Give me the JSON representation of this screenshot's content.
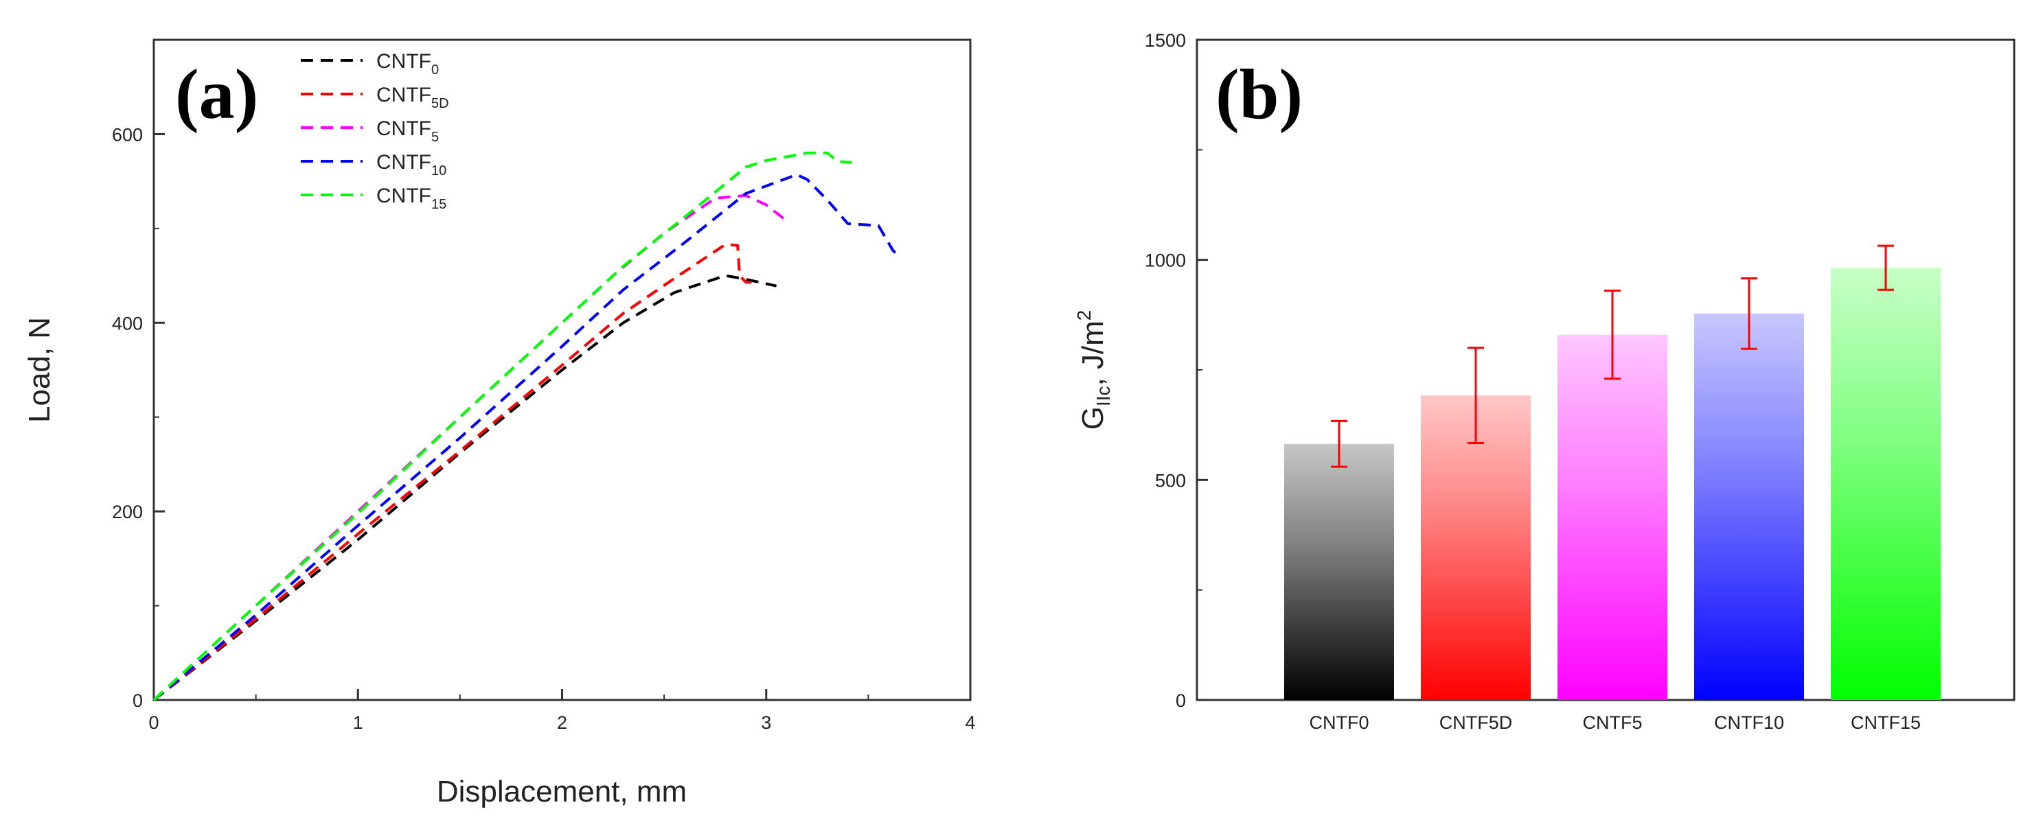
{
  "chart_data": [
    {
      "type": "line",
      "panel_label": "(a)",
      "xlabel": "Displacement, mm",
      "ylabel": "Load, N",
      "xlim": [
        0,
        4
      ],
      "ylim": [
        0,
        700
      ],
      "xticks": [
        0,
        1,
        2,
        3,
        4
      ],
      "yticks": [
        0,
        200,
        400,
        600
      ],
      "legend_position": "top-left",
      "series": [
        {
          "name": "CNTF",
          "sub": "0",
          "color": "#000000",
          "points": [
            [
              0,
              0
            ],
            [
              0.5,
              84
            ],
            [
              1,
              170
            ],
            [
              1.5,
              262
            ],
            [
              2,
              350
            ],
            [
              2.3,
              400
            ],
            [
              2.55,
              432
            ],
            [
              2.8,
              450
            ],
            [
              2.88,
              447
            ],
            [
              3.05,
              439
            ]
          ]
        },
        {
          "name": "CNTF",
          "sub": "5D",
          "color": "#ff0000",
          "points": [
            [
              0,
              0
            ],
            [
              0.5,
              86
            ],
            [
              1,
              176
            ],
            [
              1.5,
              264
            ],
            [
              2,
              355
            ],
            [
              2.3,
              410
            ],
            [
              2.55,
              447
            ],
            [
              2.8,
              483
            ],
            [
              2.86,
              482
            ],
            [
              2.87,
              450
            ],
            [
              2.9,
              443
            ],
            [
              2.95,
              443
            ]
          ]
        },
        {
          "name": "CNTF",
          "sub": "5",
          "color": "#ff00ff",
          "points": [
            [
              0,
              0
            ],
            [
              0.5,
              100
            ],
            [
              1,
              200
            ],
            [
              1.5,
              300
            ],
            [
              2,
              400
            ],
            [
              2.25,
              450
            ],
            [
              2.5,
              495
            ],
            [
              2.75,
              532
            ],
            [
              2.9,
              535
            ],
            [
              3.0,
              525
            ],
            [
              3.1,
              508
            ]
          ]
        },
        {
          "name": "CNTF",
          "sub": "10",
          "color": "#0000ff",
          "points": [
            [
              0,
              0
            ],
            [
              0.5,
              90
            ],
            [
              1,
              185
            ],
            [
              1.5,
              278
            ],
            [
              2,
              375
            ],
            [
              2.3,
              435
            ],
            [
              2.6,
              485
            ],
            [
              2.9,
              537
            ],
            [
              3.15,
              557
            ],
            [
              3.2,
              552
            ],
            [
              3.3,
              530
            ],
            [
              3.4,
              505
            ],
            [
              3.55,
              503
            ],
            [
              3.62,
              477
            ],
            [
              3.65,
              470
            ]
          ]
        },
        {
          "name": "CNTF",
          "sub": "15",
          "color": "#00ff00",
          "points": [
            [
              0,
              0
            ],
            [
              0.5,
              100
            ],
            [
              1,
              198
            ],
            [
              1.5,
              300
            ],
            [
              2,
              400
            ],
            [
              2.3,
              460
            ],
            [
              2.6,
              512
            ],
            [
              2.9,
              565
            ],
            [
              3.0,
              572
            ],
            [
              3.2,
              580
            ],
            [
              3.3,
              580
            ],
            [
              3.35,
              571
            ],
            [
              3.42,
              570
            ]
          ]
        }
      ]
    },
    {
      "type": "bar",
      "panel_label": "(b)",
      "ylabel_main": "G",
      "ylabel_sub": "IIc",
      "ylabel_rest": ", J/m",
      "ylabel_sup": "2",
      "ylim": [
        0,
        1500
      ],
      "yticks": [
        0,
        500,
        1000,
        1500
      ],
      "categories": [
        "CNTF0",
        "CNTF5D",
        "CNTF5",
        "CNTF10",
        "CNTF15"
      ],
      "values": [
        582,
        692,
        830,
        878,
        982
      ],
      "error": [
        52,
        108,
        100,
        80,
        50
      ],
      "colors": [
        "#000000",
        "#ff0000",
        "#ff00ff",
        "#0000ff",
        "#00ff00"
      ],
      "error_color": "#ff0000"
    }
  ]
}
